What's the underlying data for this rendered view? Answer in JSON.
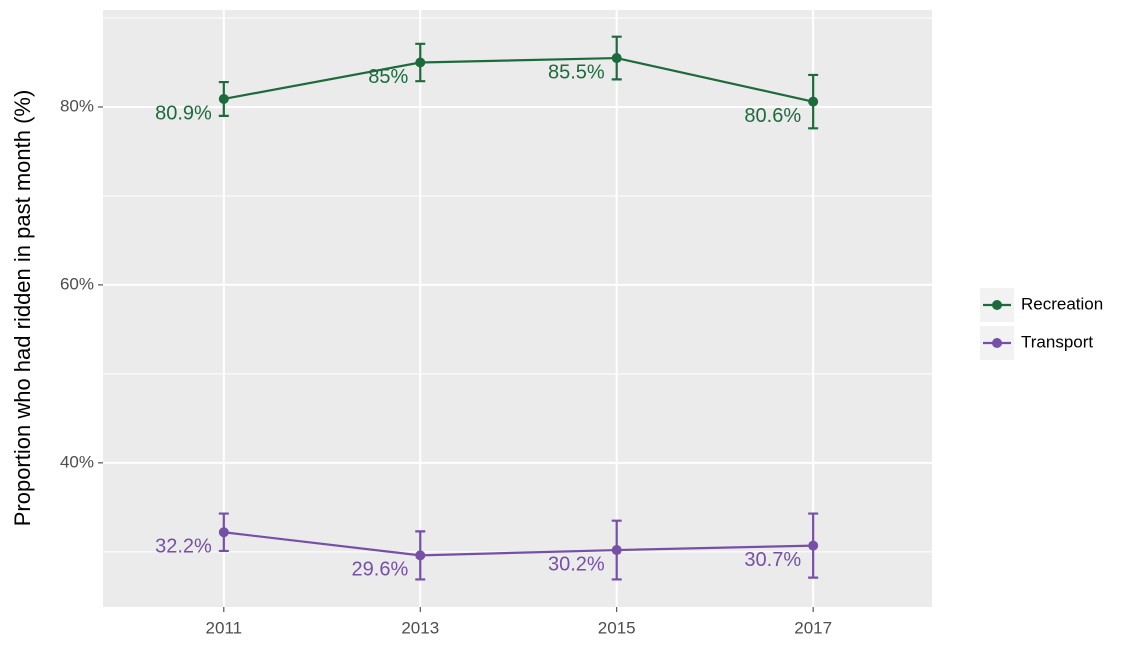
{
  "chart_data": {
    "type": "line",
    "y_axis_label": "Proportion who had ridden in past month (%)",
    "x": [
      2011,
      2013,
      2015,
      2017
    ],
    "series": [
      {
        "name": "Recreation",
        "color": "#1d6b3d",
        "values": [
          80.9,
          85,
          85.5,
          80.6
        ],
        "errors": [
          1.9,
          2.1,
          2.4,
          3.0
        ],
        "value_labels": [
          "80.9%",
          "85%",
          "85.5%",
          "80.6%"
        ]
      },
      {
        "name": "Transport",
        "color": "#7650a8",
        "values": [
          32.2,
          29.6,
          30.2,
          30.7
        ],
        "errors": [
          2.1,
          2.7,
          3.3,
          3.6
        ],
        "value_labels": [
          "32.2%",
          "29.6%",
          "30.2%",
          "30.7%"
        ]
      }
    ],
    "xlim": [
      2009.77,
      2018.21
    ],
    "xticks": [
      2011,
      2013,
      2015,
      2017
    ],
    "ylim": [
      23.8,
      90.9
    ],
    "yticks": [
      {
        "value": 40,
        "label": "40%"
      },
      {
        "value": 60,
        "label": "60%"
      },
      {
        "value": 80,
        "label": "80%"
      }
    ],
    "minor_yticks": [
      30,
      50,
      70,
      90
    ],
    "grid": true,
    "legend_position": "right"
  }
}
